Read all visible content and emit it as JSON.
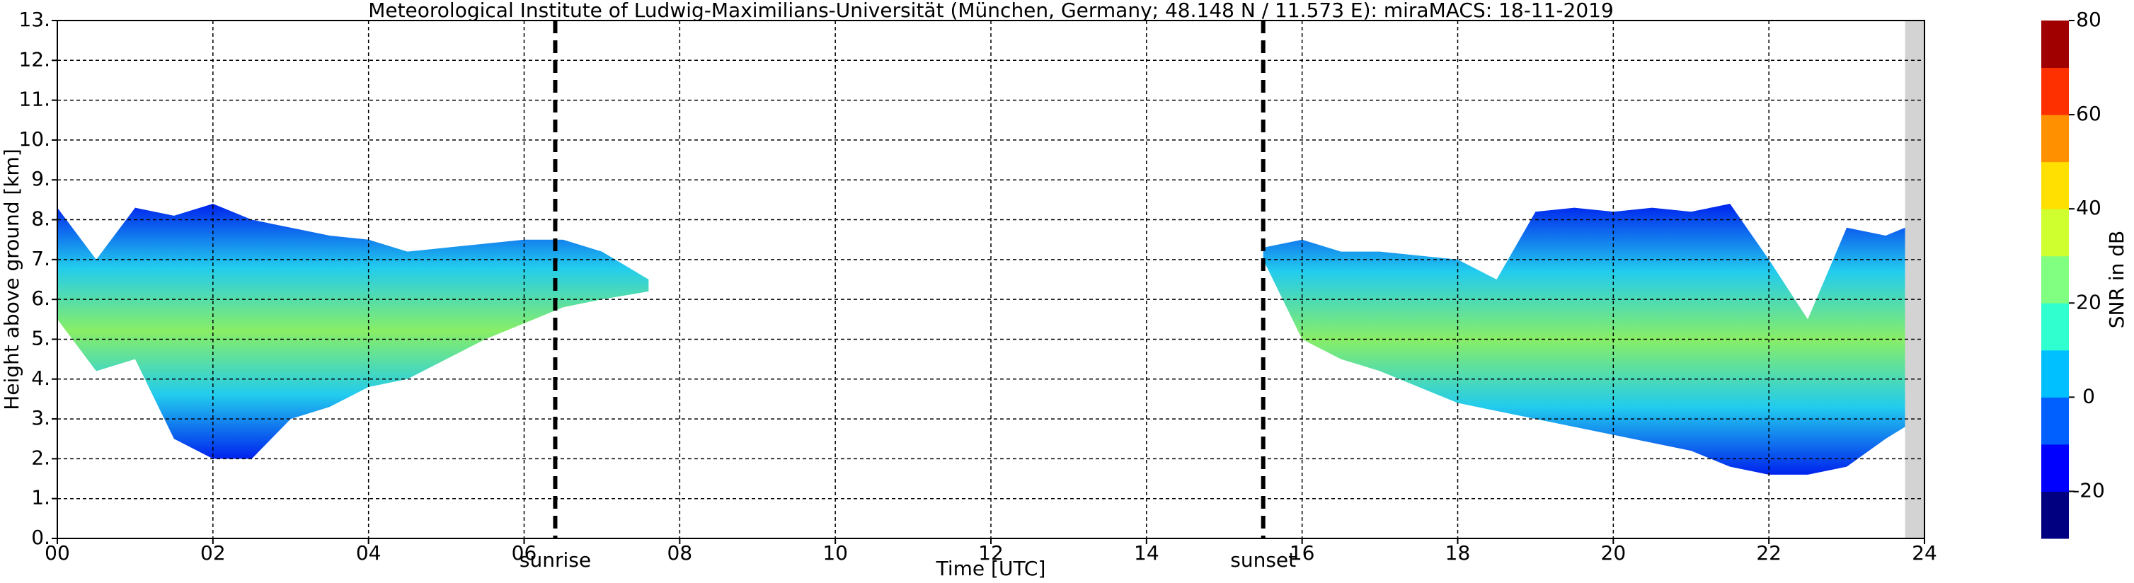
{
  "chart_data": {
    "type": "area-band",
    "title": "Meteorological Institute of Ludwig-Maximilians-Universität (München, Germany; 48.148 N / 11.573 E):    miraMACS: 18-11-2019",
    "x_label": "Time [UTC]",
    "y_label": "Height above ground [km]",
    "xlim": [
      0,
      24
    ],
    "ylim": [
      0,
      13
    ],
    "xticks": [
      {
        "value": 0,
        "label": "00"
      },
      {
        "value": 2,
        "label": "02"
      },
      {
        "value": 4,
        "label": "04"
      },
      {
        "value": 6,
        "label": "06"
      },
      {
        "value": 8,
        "label": "08"
      },
      {
        "value": 10,
        "label": "10"
      },
      {
        "value": 12,
        "label": "12"
      },
      {
        "value": 14,
        "label": "14"
      },
      {
        "value": 16,
        "label": "16"
      },
      {
        "value": 18,
        "label": "18"
      },
      {
        "value": 20,
        "label": "20"
      },
      {
        "value": 22,
        "label": "22"
      },
      {
        "value": 24,
        "label": "24"
      }
    ],
    "yticks": [
      {
        "value": 0,
        "label": "0."
      },
      {
        "value": 1,
        "label": "1."
      },
      {
        "value": 2,
        "label": "2."
      },
      {
        "value": 3,
        "label": "3."
      },
      {
        "value": 4,
        "label": "4."
      },
      {
        "value": 5,
        "label": "5."
      },
      {
        "value": 6,
        "label": "6."
      },
      {
        "value": 7,
        "label": "7."
      },
      {
        "value": 8,
        "label": "8."
      },
      {
        "value": 9,
        "label": "9."
      },
      {
        "value": 10,
        "label": "10."
      },
      {
        "value": 11,
        "label": "11."
      },
      {
        "value": 12,
        "label": "12."
      },
      {
        "value": 13,
        "label": "13."
      }
    ],
    "grid": true,
    "nodata": [
      23.75,
      24
    ],
    "fill_colors": [
      "#0022ee",
      "#22ccee",
      "#88ee66"
    ],
    "series": [
      {
        "x": [
          0,
          0.5,
          1,
          1.5,
          2,
          2.5,
          3,
          3.5,
          4,
          4.5,
          5,
          5.5,
          6,
          6.5,
          7,
          7.6
        ],
        "top": [
          8.3,
          7,
          8.3,
          8.1,
          8.4,
          8,
          7.8,
          7.6,
          7.5,
          7.2,
          7.3,
          7.4,
          7.5,
          7.5,
          7.2,
          6.5
        ],
        "base": [
          5.5,
          4.2,
          4.5,
          2.5,
          2,
          2,
          3,
          3.3,
          3.8,
          4,
          4.5,
          5,
          5.4,
          5.8,
          6,
          6.2
        ]
      },
      {
        "x": [
          15.5,
          16,
          16.5,
          17,
          17.5,
          18,
          18.5,
          19,
          19.5,
          20,
          20.5,
          21,
          21.5,
          22,
          22.5,
          23,
          23.5,
          23.75
        ],
        "top": [
          7.3,
          7.5,
          7.2,
          7.2,
          7.1,
          7,
          6.5,
          8.2,
          8.3,
          8.2,
          8.3,
          8.2,
          8.4,
          7,
          5.5,
          7.8,
          7.6,
          7.8
        ],
        "base": [
          7,
          5,
          4.5,
          4.2,
          3.8,
          3.4,
          3.2,
          3,
          2.8,
          2.6,
          2.4,
          2.2,
          1.8,
          1.6,
          1.6,
          1.8,
          2.5,
          2.8
        ]
      }
    ],
    "annotations": [
      {
        "x": 6.4,
        "label": "sunrise"
      },
      {
        "x": 15.5,
        "label": "sunset"
      }
    ],
    "colorbar": {
      "label": "SNR in dB",
      "lim": [
        -30,
        80
      ],
      "ticks": [
        -20,
        0,
        20,
        40,
        60,
        80
      ],
      "colors": [
        "#000080",
        "#0000ff",
        "#0060ff",
        "#00c0ff",
        "#30ffd0",
        "#80ff80",
        "#d0ff30",
        "#ffe000",
        "#ff9000",
        "#ff3000",
        "#a00000"
      ]
    }
  }
}
